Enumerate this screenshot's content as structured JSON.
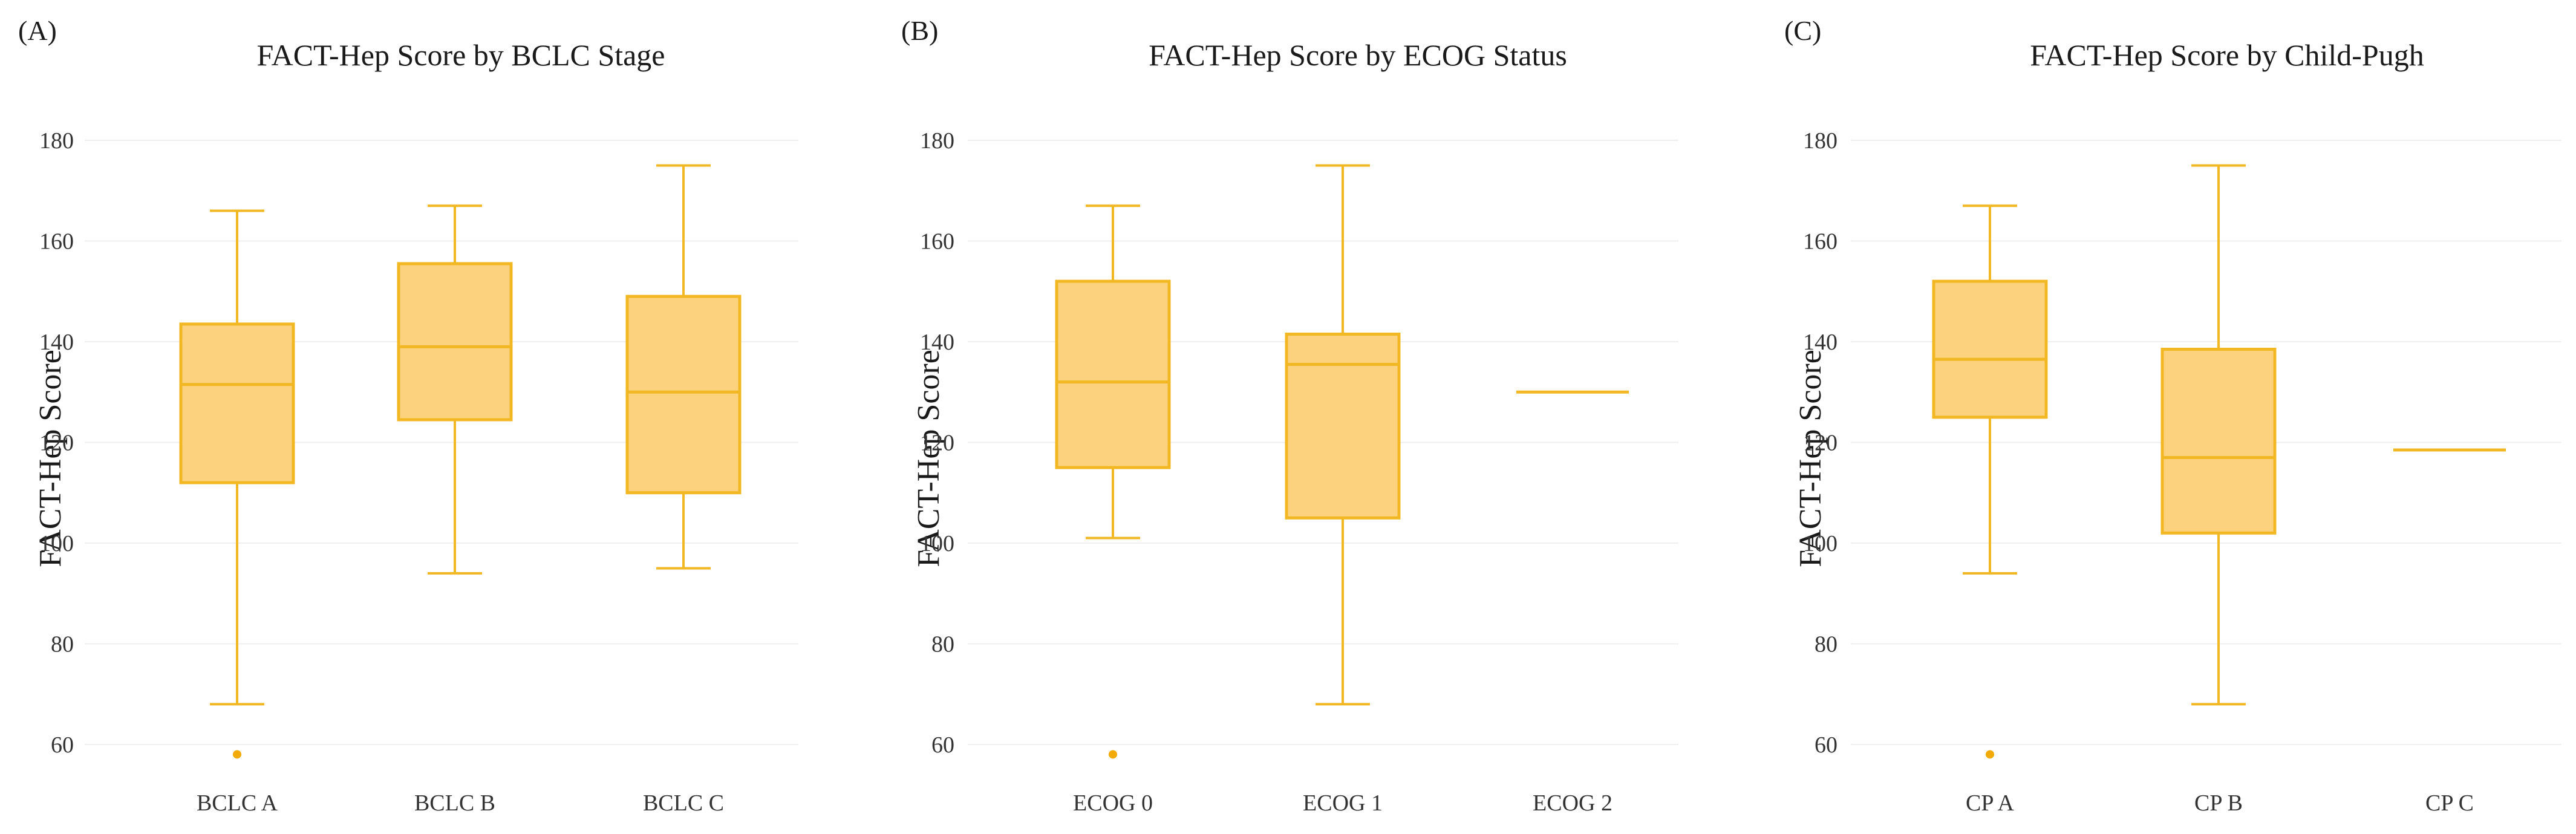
{
  "colors": {
    "box_fill": "#fdd27f",
    "box_stroke": "#f2b824",
    "outlier": "#f2a900",
    "grid": "#efefef",
    "text": "#1a1a1a"
  },
  "chart_data": [
    {
      "panel": "(A)",
      "type": "box",
      "title": "FACT-Hep Score by BCLC Stage",
      "xlabel": "",
      "ylabel": "FACT-Hep Score",
      "ylim": [
        55,
        185
      ],
      "yticks": [
        60,
        80,
        100,
        120,
        140,
        160,
        180
      ],
      "grid": "horizontal",
      "categories": [
        "BCLC A",
        "BCLC B",
        "BCLC C"
      ],
      "boxes": [
        {
          "min": 68,
          "q1": 112,
          "median": 131.5,
          "q3": 143.5,
          "max": 166,
          "outliers": [
            59
          ]
        },
        {
          "min": 94,
          "q1": 124.5,
          "median": 139,
          "q3": 155.5,
          "max": 167,
          "outliers": []
        },
        {
          "min": 95,
          "q1": 110,
          "median": 130,
          "q3": 149,
          "max": 175,
          "outliers": []
        }
      ]
    },
    {
      "panel": "(B)",
      "type": "box",
      "title": "FACT-Hep Score by ECOG Status",
      "xlabel": "",
      "ylabel": "FACT-Hep Score",
      "ylim": [
        55,
        185
      ],
      "yticks": [
        60,
        80,
        100,
        120,
        140,
        160,
        180
      ],
      "grid": "horizontal",
      "categories": [
        "ECOG 0",
        "ECOG 1",
        "ECOG 2"
      ],
      "boxes": [
        {
          "min": 101,
          "q1": 115,
          "median": 132,
          "q3": 152,
          "max": 167,
          "outliers": [
            59
          ]
        },
        {
          "min": 68,
          "q1": 105,
          "median": 135.5,
          "q3": 141.5,
          "max": 175,
          "outliers": []
        },
        {
          "min": 130,
          "q1": 130,
          "median": 130,
          "q3": 130,
          "max": 130,
          "outliers": []
        }
      ]
    },
    {
      "panel": "(C)",
      "type": "box",
      "title": "FACT-Hep Score by Child-Pugh",
      "xlabel": "",
      "ylabel": "FACT-Hep Score",
      "ylim": [
        55,
        185
      ],
      "yticks": [
        60,
        80,
        100,
        120,
        140,
        160,
        180
      ],
      "grid": "horizontal",
      "categories": [
        "CP A",
        "CP B",
        "CP C"
      ],
      "boxes": [
        {
          "min": 94,
          "q1": 125,
          "median": 136.5,
          "q3": 152,
          "max": 167,
          "outliers": [
            59
          ]
        },
        {
          "min": 68,
          "q1": 102,
          "median": 117,
          "q3": 138.5,
          "max": 175,
          "outliers": []
        },
        {
          "min": 118.5,
          "q1": 118.5,
          "median": 118.5,
          "q3": 118.5,
          "max": 118.5,
          "outliers": []
        }
      ]
    }
  ]
}
